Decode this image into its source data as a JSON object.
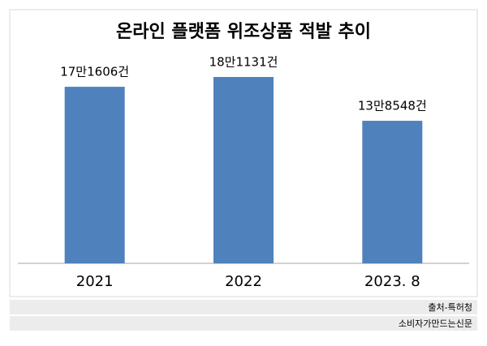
{
  "chart_data": {
    "type": "bar",
    "title": "온라인 플랫폼 위조상품 적발 추이",
    "categories": [
      "2021",
      "2022",
      "2023. 8"
    ],
    "values": [
      171606,
      181131,
      138548
    ],
    "value_labels": [
      "17만1606건",
      "18만1131건",
      "13만8548건"
    ],
    "color": "#4f81bd"
  },
  "source": "출처-특허청",
  "publisher": "소비자가만드는신문"
}
